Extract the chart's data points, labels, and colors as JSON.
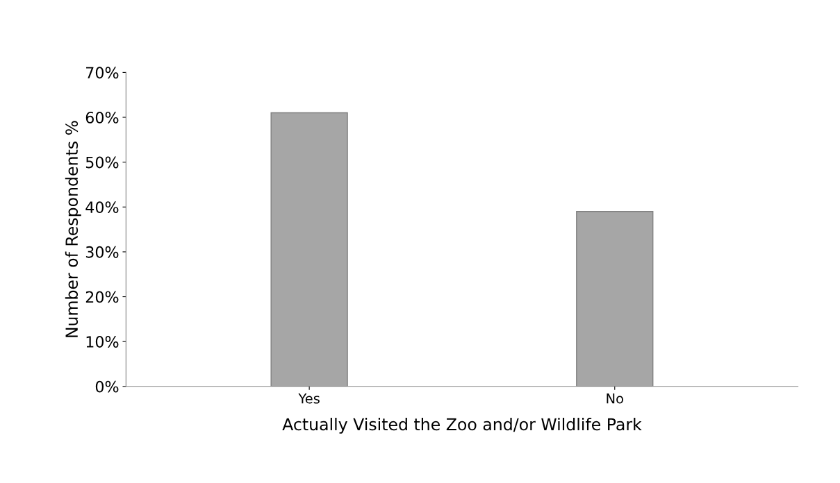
{
  "chart_data": {
    "type": "bar",
    "xlabel": "Actually Visited the Zoo and/or Wildlife Park",
    "ylabel": "Number of Respondents %",
    "categories": [
      "Yes",
      "No"
    ],
    "values": [
      61,
      39
    ],
    "color": "#a6a6a6",
    "ylim": [
      0,
      70
    ],
    "yticks": [
      {
        "value": 0,
        "label": "0%"
      },
      {
        "value": 10,
        "label": "10%"
      },
      {
        "value": 20,
        "label": "20%"
      },
      {
        "value": 30,
        "label": "30%"
      },
      {
        "value": 40,
        "label": "40%"
      },
      {
        "value": 50,
        "label": "50%"
      },
      {
        "value": 60,
        "label": "60%"
      },
      {
        "value": 70,
        "label": "70%"
      }
    ],
    "grid": false,
    "legend": false
  }
}
